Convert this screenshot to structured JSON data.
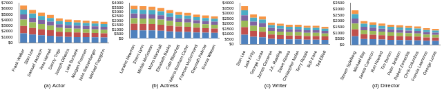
{
  "chart_data": [
    {
      "type": "bar",
      "stacked": true,
      "grid": false,
      "title": "(a) Actor",
      "categories": [
        "Frank Welker",
        "Stan Lee",
        "Samuel Jackson",
        "Jess Harnell",
        "Danny Trejo",
        "Joseph Oliveira",
        "Luke Burbank",
        "Morgan Freeman",
        "John Ratzenberger",
        "Michael Papajohn"
      ],
      "series": [
        {
          "color": "#4f81bd",
          "values": [
            1650,
            1450,
            1330,
            1230,
            1080,
            1030,
            1000,
            980,
            950,
            930
          ]
        },
        {
          "color": "#c0504d",
          "values": [
            1320,
            1160,
            1060,
            980,
            860,
            820,
            800,
            780,
            760,
            740
          ]
        },
        {
          "color": "#9bbb59",
          "values": [
            1120,
            990,
            900,
            830,
            730,
            700,
            680,
            660,
            650,
            630
          ]
        },
        {
          "color": "#8064a2",
          "values": [
            920,
            810,
            740,
            690,
            600,
            570,
            560,
            550,
            530,
            520
          ]
        },
        {
          "color": "#4bacc6",
          "values": [
            860,
            750,
            690,
            640,
            560,
            530,
            520,
            510,
            490,
            480
          ]
        },
        {
          "color": "#f79646",
          "values": [
            730,
            640,
            580,
            530,
            470,
            450,
            440,
            420,
            420,
            400
          ]
        }
      ],
      "ylim": [
        0,
        7000
      ],
      "yticks": [
        {
          "value": 0,
          "label": "$0"
        },
        {
          "value": 1000,
          "label": "$1000"
        },
        {
          "value": 2000,
          "label": "$2000"
        },
        {
          "value": 3000,
          "label": "$3000"
        },
        {
          "value": 4000,
          "label": "$4000"
        },
        {
          "value": 5000,
          "label": "$5000"
        },
        {
          "value": 6000,
          "label": "$6000"
        },
        {
          "value": 7000,
          "label": "$7000"
        }
      ]
    },
    {
      "type": "bar",
      "stacked": true,
      "grid": false,
      "title": "(b) Actress",
      "categories": [
        "Laraine Newman",
        "Sherri Lynn",
        "Mickie McGowan",
        "Mona Marshall",
        "Elizabeth Banks",
        "Cate Blanchett",
        "Helena Bonham Carter",
        "Frances McDormand",
        "Gwyneth Paltrow",
        "Emma Watson"
      ],
      "series": [
        {
          "color": "#4f81bd",
          "values": [
            930,
            910,
            900,
            860,
            800,
            750,
            730,
            680,
            650,
            630
          ]
        },
        {
          "color": "#c0504d",
          "values": [
            740,
            730,
            720,
            690,
            640,
            600,
            580,
            540,
            520,
            500
          ]
        },
        {
          "color": "#9bbb59",
          "values": [
            630,
            620,
            610,
            590,
            540,
            510,
            490,
            460,
            440,
            430
          ]
        },
        {
          "color": "#8064a2",
          "values": [
            520,
            510,
            500,
            480,
            450,
            420,
            410,
            380,
            360,
            350
          ]
        },
        {
          "color": "#4bacc6",
          "values": [
            480,
            470,
            470,
            450,
            420,
            390,
            380,
            350,
            340,
            320
          ]
        },
        {
          "color": "#f79646",
          "values": [
            400,
            410,
            400,
            380,
            350,
            330,
            310,
            290,
            290,
            270
          ]
        }
      ],
      "ylim": [
        0,
        4000
      ],
      "yticks": [
        {
          "value": 0,
          "label": "$0"
        },
        {
          "value": 500,
          "label": "$500"
        },
        {
          "value": 1000,
          "label": "$1000"
        },
        {
          "value": 1500,
          "label": "$1500"
        },
        {
          "value": 2000,
          "label": "$2000"
        },
        {
          "value": 2500,
          "label": "$2500"
        },
        {
          "value": 3000,
          "label": "$3000"
        },
        {
          "value": 3500,
          "label": "$3500"
        },
        {
          "value": 4000,
          "label": "$4000"
        }
      ]
    },
    {
      "type": "bar",
      "stacked": true,
      "grid": false,
      "title": "(c) Writer",
      "categories": [
        "Stan Lee",
        "Jack Kirby",
        "George Lucas",
        "James Cameron",
        "J.K. Rowling",
        "Steve Kloves",
        "Christopher Nolan",
        "Terry Rossio",
        "Bob Kane",
        "Ted Elliott"
      ],
      "series": [
        {
          "color": "#4f81bd",
          "values": [
            930,
            730,
            680,
            530,
            500,
            480,
            480,
            450,
            450,
            430
          ]
        },
        {
          "color": "#c0504d",
          "values": [
            740,
            580,
            540,
            420,
            400,
            380,
            380,
            360,
            360,
            340
          ]
        },
        {
          "color": "#9bbb59",
          "values": [
            630,
            490,
            460,
            360,
            340,
            320,
            320,
            310,
            310,
            290
          ]
        },
        {
          "color": "#8064a2",
          "values": [
            520,
            410,
            380,
            290,
            280,
            270,
            270,
            250,
            250,
            240
          ]
        },
        {
          "color": "#4bacc6",
          "values": [
            480,
            380,
            350,
            270,
            260,
            250,
            250,
            230,
            230,
            220
          ]
        },
        {
          "color": "#f79646",
          "values": [
            400,
            310,
            290,
            230,
            220,
            200,
            200,
            200,
            200,
            180
          ]
        }
      ],
      "ylim": [
        0,
        4000
      ],
      "yticks": [
        {
          "value": 0,
          "label": "$0"
        },
        {
          "value": 500,
          "label": "$500"
        },
        {
          "value": 1000,
          "label": "$1000"
        },
        {
          "value": 1500,
          "label": "$1500"
        },
        {
          "value": 2000,
          "label": "$2000"
        },
        {
          "value": 2500,
          "label": "$2500"
        },
        {
          "value": 3000,
          "label": "$3000"
        },
        {
          "value": 3500,
          "label": "$3500"
        },
        {
          "value": 4000,
          "label": "$4000"
        }
      ]
    },
    {
      "type": "bar",
      "stacked": true,
      "grid": false,
      "title": "(d) Director",
      "categories": [
        "Steven Spielberg",
        "Michael Bay",
        "James Cameron",
        "Ron Howard",
        "Tim Burton",
        "Peter Jackson",
        "Robert Zemeckis",
        "Chris Columbus",
        "Francis Lawrence",
        "George Lucas"
      ],
      "series": [
        {
          "color": "#4f81bd",
          "values": [
            730,
            500,
            480,
            450,
            430,
            410,
            400,
            390,
            350,
            340
          ]
        },
        {
          "color": "#c0504d",
          "values": [
            580,
            400,
            380,
            360,
            340,
            330,
            320,
            310,
            280,
            270
          ]
        },
        {
          "color": "#9bbb59",
          "values": [
            490,
            340,
            320,
            310,
            290,
            280,
            270,
            260,
            240,
            230
          ]
        },
        {
          "color": "#8064a2",
          "values": [
            410,
            280,
            270,
            250,
            240,
            230,
            220,
            220,
            200,
            190
          ]
        },
        {
          "color": "#4bacc6",
          "values": [
            380,
            260,
            250,
            230,
            220,
            220,
            210,
            200,
            180,
            180
          ]
        },
        {
          "color": "#f79646",
          "values": [
            310,
            220,
            200,
            200,
            180,
            180,
            180,
            170,
            150,
            140
          ]
        }
      ],
      "ylim": [
        0,
        3500
      ],
      "yticks": [
        {
          "value": 0,
          "label": "$0"
        },
        {
          "value": 500,
          "label": "$500"
        },
        {
          "value": 1000,
          "label": "$1000"
        },
        {
          "value": 1500,
          "label": "$1500"
        },
        {
          "value": 2000,
          "label": "$2000"
        },
        {
          "value": 2500,
          "label": "$2500"
        },
        {
          "value": 3000,
          "label": "$3000"
        },
        {
          "value": 3500,
          "label": "$3500"
        }
      ]
    }
  ]
}
